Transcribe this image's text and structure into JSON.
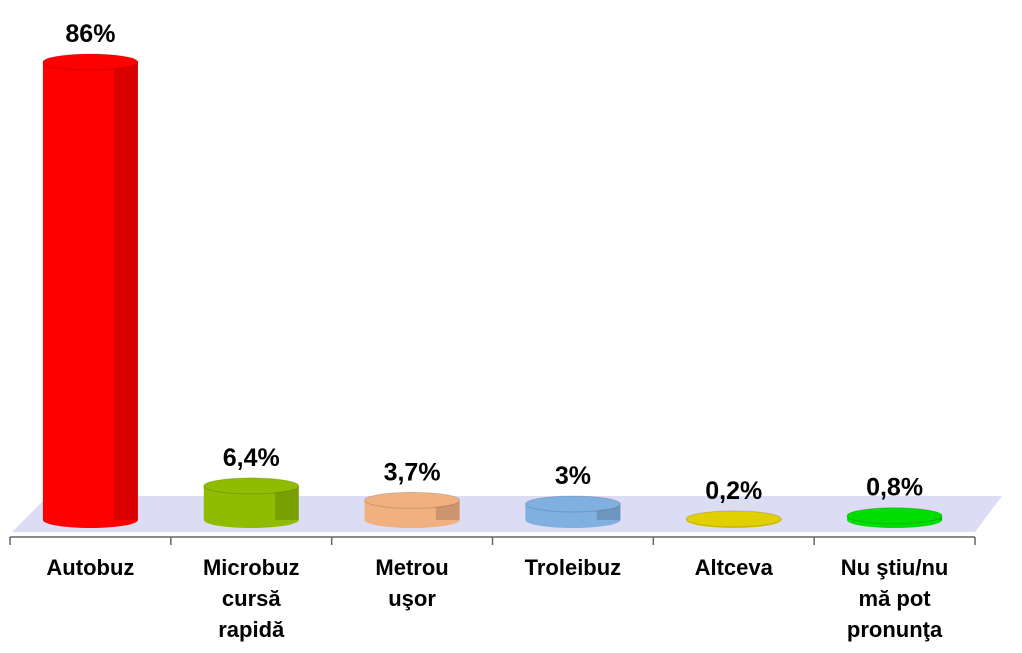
{
  "chart_data": {
    "type": "bar",
    "categories": [
      "Autobuz",
      "Microbuz\ncursă\nrapidă",
      "Metrou\nuşor",
      "Troleibuz",
      "Altceva",
      "Nu ştiu/nu\nmă pot\npronunţa"
    ],
    "values": [
      86,
      6.4,
      3.7,
      3,
      0.2,
      0.8
    ],
    "value_labels": [
      "86%",
      "6,4%",
      "3,7%",
      "3%",
      "0,2%",
      "0,8%"
    ],
    "colors": [
      "#ff0000",
      "#8fbc00",
      "#f0b080",
      "#80b0e0",
      "#e0d000",
      "#00dd00"
    ]
  }
}
